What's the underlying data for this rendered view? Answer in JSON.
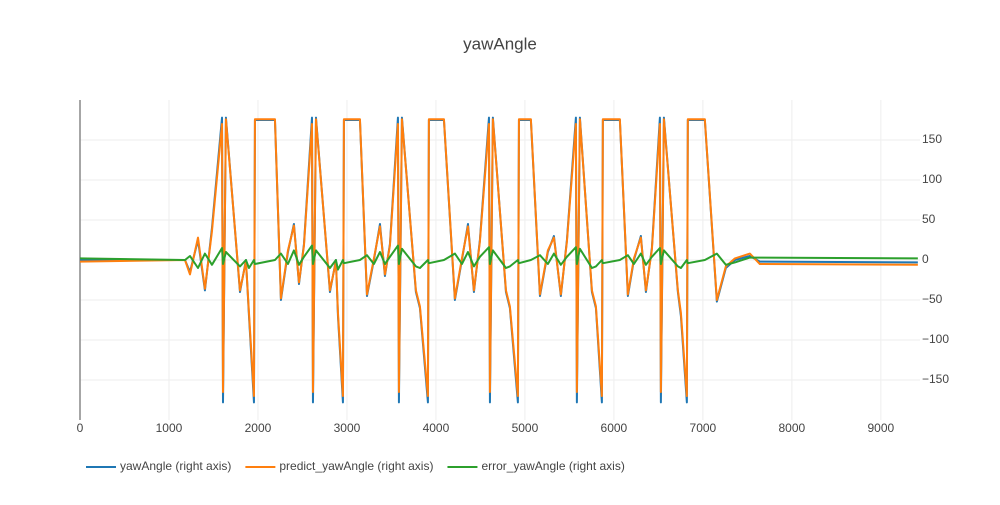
{
  "chart_data": {
    "type": "line",
    "title": "yawAngle",
    "x": [
      0,
      1180,
      1236,
      1326,
      1404,
      1483,
      1596,
      1607,
      1640,
      1798,
      1865,
      1899,
      1955,
      1966,
      2191,
      2258,
      2337,
      2404,
      2461,
      2517,
      2607,
      2618,
      2652,
      2809,
      2876,
      2899,
      2955,
      2966,
      3146,
      3225,
      3303,
      3371,
      3427,
      3483,
      3573,
      3584,
      3618,
      3775,
      3820,
      3910,
      3921,
      4090,
      4213,
      4292,
      4360,
      4427,
      4494,
      4596,
      4607,
      4640,
      4787,
      4831,
      4921,
      4933,
      5067,
      5169,
      5258,
      5326,
      5404,
      5472,
      5573,
      5584,
      5618,
      5753,
      5798,
      5865,
      5876,
      6067,
      6157,
      6225,
      6303,
      6360,
      6427,
      6517,
      6528,
      6562,
      6719,
      6753,
      6820,
      6831,
      7022,
      7157,
      7258,
      7360,
      7528,
      7640,
      9416
    ],
    "series": [
      {
        "name": "yawAngle (right axis)",
        "color": "#1f77b4",
        "axis": "y2",
        "values": [
          0,
          0,
          -15,
          25,
          -38,
          40,
          178,
          -178,
          178,
          -40,
          0,
          -70,
          -178,
          175,
          175,
          -50,
          10,
          45,
          -30,
          20,
          178,
          -178,
          178,
          -40,
          0,
          -70,
          -178,
          175,
          175,
          -45,
          0,
          45,
          -20,
          20,
          178,
          -178,
          178,
          -40,
          -60,
          -178,
          175,
          175,
          -50,
          0,
          45,
          -40,
          25,
          178,
          -178,
          178,
          -40,
          -60,
          -178,
          175,
          175,
          -45,
          10,
          30,
          -45,
          25,
          178,
          -178,
          178,
          -40,
          -60,
          -178,
          175,
          175,
          -45,
          0,
          30,
          -40,
          15,
          178,
          -178,
          178,
          -40,
          -70,
          -178,
          175,
          175,
          -52,
          -10,
          0,
          5,
          -2,
          -3
        ]
      },
      {
        "name": "predict_yawAngle (right axis)",
        "color": "#ff7f0e",
        "axis": "y2",
        "values": [
          -2,
          0,
          -18,
          28,
          -36,
          36,
          170,
          -165,
          176,
          -38,
          -2,
          -66,
          -170,
          176,
          176,
          -48,
          12,
          43,
          -28,
          18,
          170,
          -165,
          176,
          -38,
          -2,
          -66,
          -170,
          176,
          176,
          -43,
          2,
          42,
          -18,
          18,
          170,
          -165,
          176,
          -38,
          -58,
          -170,
          176,
          176,
          -48,
          2,
          42,
          -38,
          23,
          170,
          -165,
          176,
          -38,
          -58,
          -170,
          176,
          176,
          -43,
          12,
          28,
          -43,
          23,
          170,
          -165,
          176,
          -38,
          -58,
          -170,
          176,
          176,
          -43,
          2,
          28,
          -38,
          13,
          170,
          -165,
          176,
          -38,
          -66,
          -170,
          176,
          176,
          -50,
          -8,
          2,
          8,
          -5,
          -6
        ]
      },
      {
        "name": "error_yawAngle (right axis)",
        "color": "#2ca02c",
        "axis": "y2",
        "values": [
          2,
          0,
          5,
          -10,
          8,
          -6,
          15,
          -5,
          10,
          -8,
          0,
          -10,
          0,
          -5,
          0,
          8,
          -5,
          12,
          -6,
          4,
          18,
          -5,
          12,
          -10,
          0,
          -12,
          0,
          -4,
          0,
          6,
          -5,
          10,
          -5,
          4,
          18,
          -5,
          14,
          -8,
          -10,
          0,
          -4,
          0,
          8,
          -5,
          10,
          -8,
          4,
          16,
          -5,
          12,
          -10,
          -8,
          0,
          -4,
          0,
          6,
          -5,
          8,
          -6,
          4,
          16,
          -5,
          14,
          -10,
          -8,
          0,
          -4,
          0,
          6,
          -5,
          8,
          -6,
          4,
          15,
          -5,
          12,
          -8,
          -10,
          0,
          -4,
          0,
          8,
          -6,
          -3,
          3,
          3,
          2
        ]
      }
    ],
    "xlim": [
      0,
      9440
    ],
    "xticks": [
      0,
      1000,
      2000,
      3000,
      4000,
      5000,
      6000,
      7000,
      8000,
      9000
    ],
    "y2lim": [
      -200,
      200
    ],
    "y2ticks": [
      {
        "value": -150,
        "label": "−150"
      },
      {
        "value": -100,
        "label": "−100"
      },
      {
        "value": -50,
        "label": "−50"
      },
      0,
      50,
      100,
      150
    ],
    "grid": true,
    "legend": "bottom"
  }
}
